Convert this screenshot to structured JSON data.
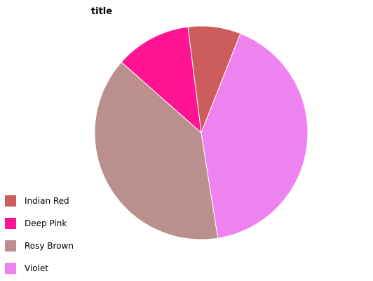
{
  "chart_data": {
    "type": "pie",
    "title": "title",
    "categories": [
      "Indian Red",
      "Deep Pink",
      "Rosy Brown",
      "Violet"
    ],
    "values": [
      8.0,
      11.5,
      39.0,
      41.5
    ],
    "colors": [
      "#cd5c5c",
      "#ff1493",
      "#bc8f8f",
      "#ee82ee"
    ],
    "start_order_drawn": [
      "Indian Red",
      "Deep Pink",
      "Rosy Brown",
      "Violet"
    ],
    "direction": "counterclockwise",
    "legend": "bottom-left"
  }
}
